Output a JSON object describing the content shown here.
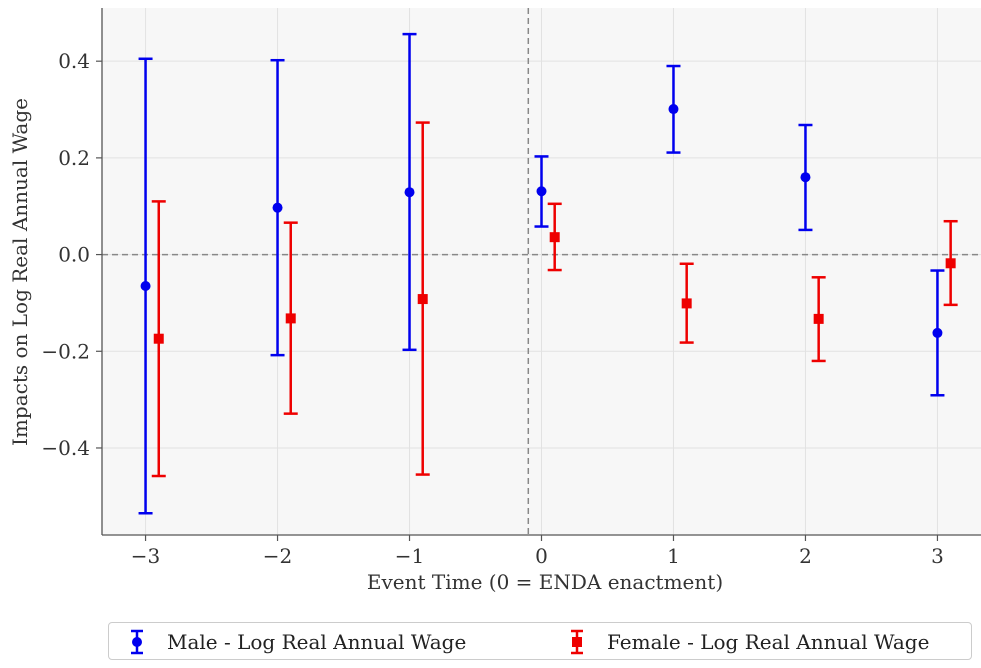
{
  "chart_data": {
    "type": "scatter",
    "x_label": "Event Time (0 = ENDA enactment)",
    "y_label": "Impacts on Log Real Annual Wage",
    "x_ticks": [
      "−3",
      "−2",
      "−1",
      "0",
      "1",
      "2",
      "3"
    ],
    "y_ticks": [
      "−0.4",
      "−0.2",
      "0.0",
      "0.2",
      "0.4"
    ],
    "xlim": [
      -3.33,
      3.33
    ],
    "ylim": [
      -0.58,
      0.51
    ],
    "grid": true,
    "reference_lines": {
      "horizontal_y": 0.0,
      "vertical_x": -0.1
    },
    "legend_position": "bottom",
    "series": [
      {
        "name": "Male - Log Real Annual Wage",
        "color": "#0000ee",
        "marker": "circle",
        "x": [
          -3,
          -2,
          -1,
          0,
          1,
          2,
          3
        ],
        "y": [
          -0.065,
          0.097,
          0.129,
          0.131,
          0.301,
          0.16,
          -0.162
        ],
        "lower": [
          -0.535,
          -0.208,
          -0.197,
          0.058,
          0.211,
          0.051,
          -0.291
        ],
        "upper": [
          0.405,
          0.402,
          0.456,
          0.203,
          0.39,
          0.268,
          -0.033
        ]
      },
      {
        "name": "Female - Log Real Annual Wage",
        "color": "#ee0000",
        "marker": "square",
        "x": [
          -2.9,
          -1.9,
          -0.9,
          0.1,
          1.1,
          2.1,
          3.1
        ],
        "y": [
          -0.174,
          -0.132,
          -0.092,
          0.036,
          -0.101,
          -0.133,
          -0.018
        ],
        "lower": [
          -0.458,
          -0.329,
          -0.455,
          -0.032,
          -0.182,
          -0.22,
          -0.104
        ],
        "upper": [
          0.11,
          0.066,
          0.273,
          0.105,
          -0.019,
          -0.047,
          0.069
        ]
      }
    ]
  }
}
